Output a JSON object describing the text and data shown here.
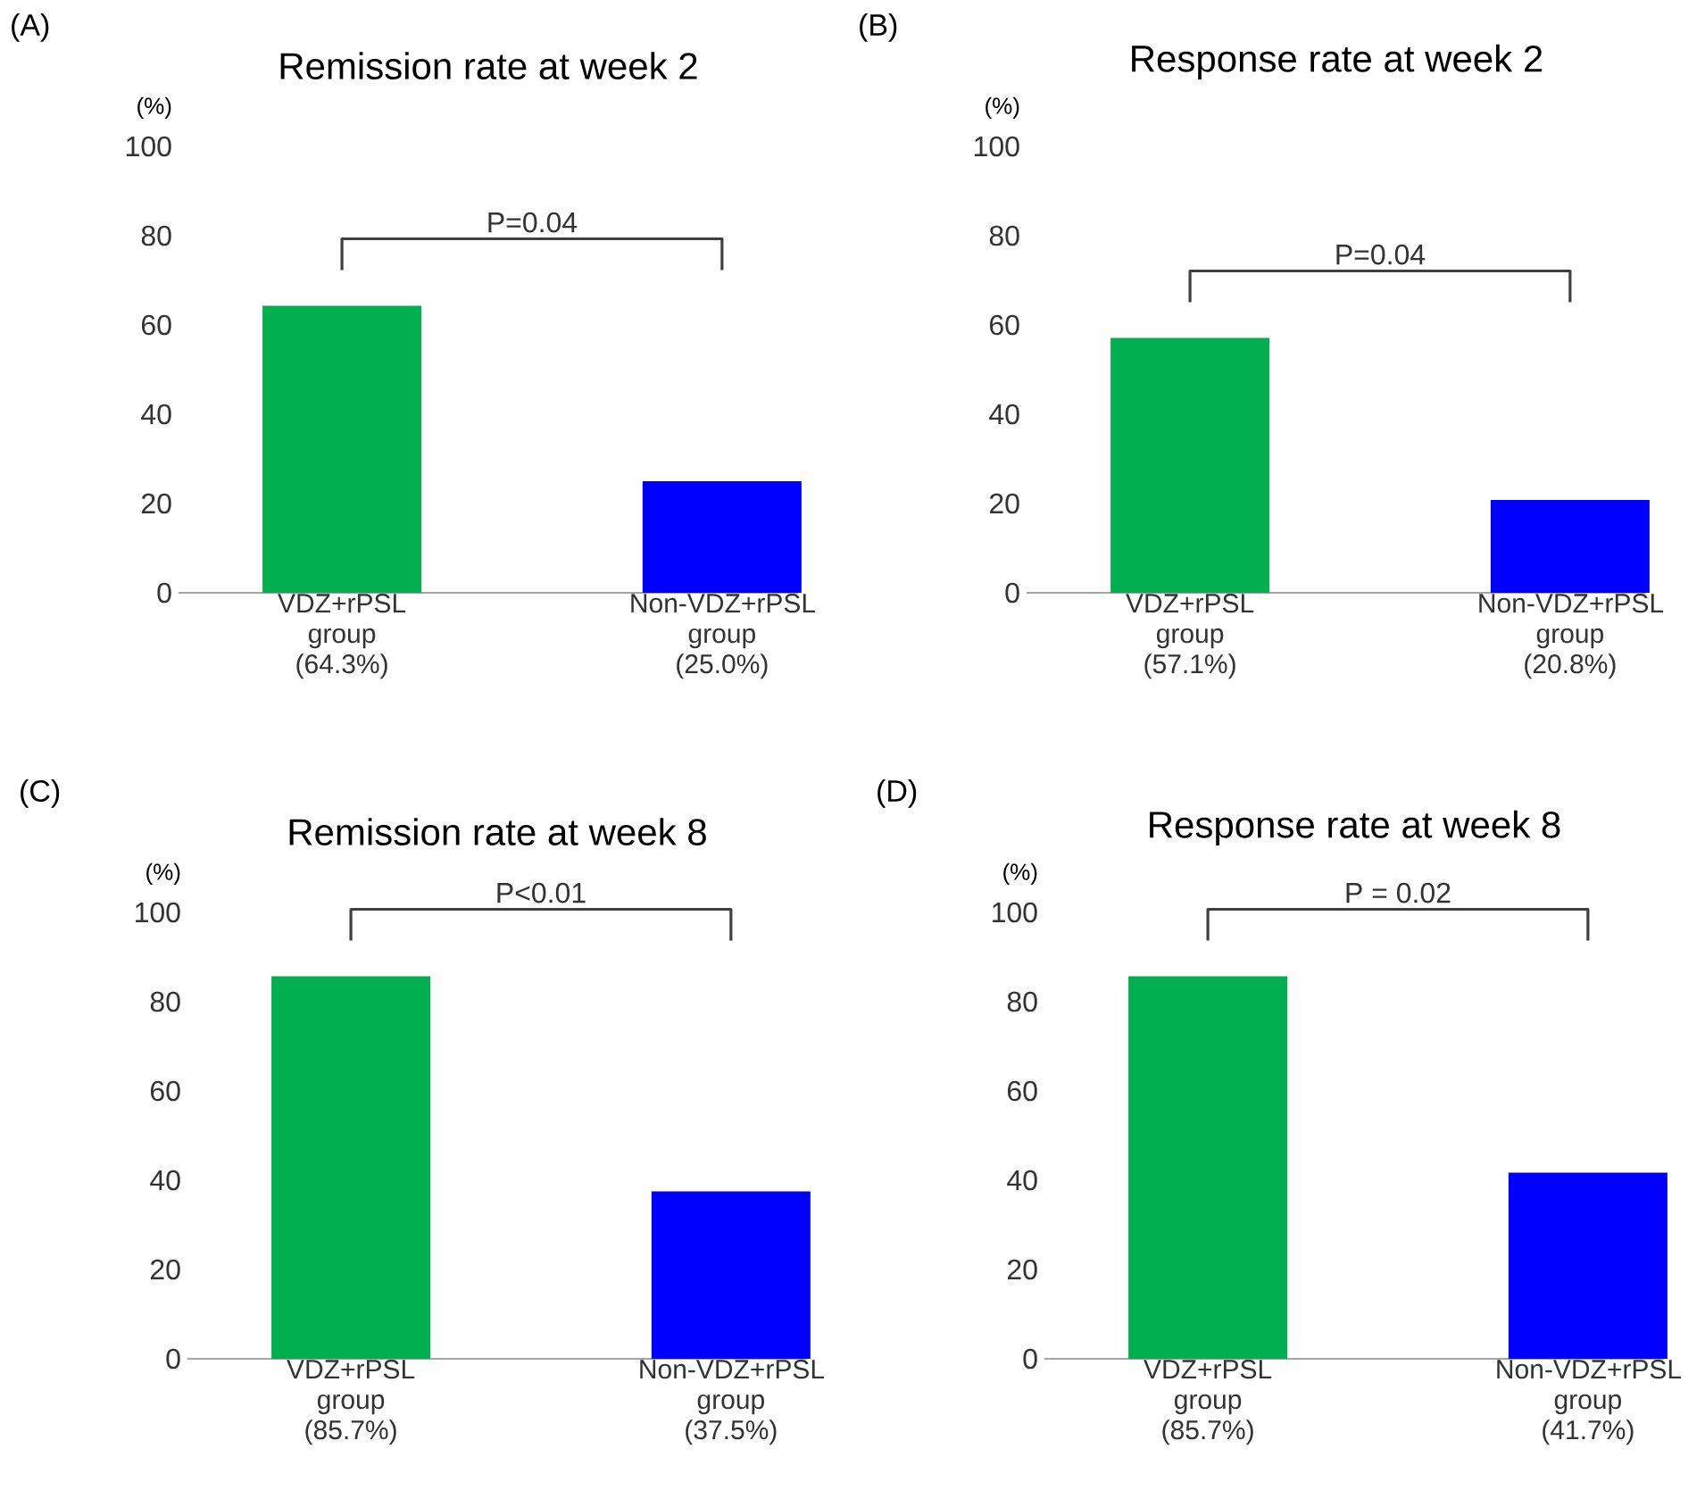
{
  "chart_data": [
    {
      "type": "bar",
      "title": "Remission rate at week 2",
      "ylabel": "(%)",
      "categories": [
        "VDZ+rPSL group",
        "Non-VDZ+rPSL group"
      ],
      "values": [
        64.3,
        25.0
      ],
      "value_labels": [
        "(64.3%)",
        "(25.0%)"
      ],
      "colors": [
        "#00b050",
        "#0000ff"
      ],
      "ylim": [
        0,
        100
      ],
      "yticks": [
        0,
        20,
        40,
        60,
        80,
        100
      ],
      "annotations": [
        "(A)",
        "P=0.04"
      ]
    },
    {
      "type": "bar",
      "title": "Response rate at week 2",
      "ylabel": "(%)",
      "categories": [
        "VDZ+rPSL group",
        "Non-VDZ+rPSL group"
      ],
      "values": [
        57.1,
        20.8
      ],
      "value_labels": [
        "(57.1%)",
        "(20.8%)"
      ],
      "colors": [
        "#00b050",
        "#0000ff"
      ],
      "ylim": [
        0,
        100
      ],
      "yticks": [
        0,
        20,
        40,
        60,
        80,
        100
      ],
      "annotations": [
        "(B)",
        "P=0.04"
      ]
    },
    {
      "type": "bar",
      "title": "Remission rate at week 8",
      "ylabel": "(%)",
      "categories": [
        "VDZ+rPSL group",
        "Non-VDZ+rPSL group"
      ],
      "values": [
        85.7,
        37.5
      ],
      "value_labels": [
        "(85.7%)",
        "(37.5%)"
      ],
      "colors": [
        "#00b050",
        "#0000ff"
      ],
      "ylim": [
        0,
        100
      ],
      "yticks": [
        0,
        20,
        40,
        60,
        80,
        100
      ],
      "annotations": [
        "(C)",
        "P<0.01"
      ]
    },
    {
      "type": "bar",
      "title": "Response rate at week 8",
      "ylabel": "(%)",
      "categories": [
        "VDZ+rPSL group",
        "Non-VDZ+rPSL group"
      ],
      "values": [
        85.7,
        41.7
      ],
      "value_labels": [
        "(85.7%)",
        "(41.7%)"
      ],
      "colors": [
        "#00b050",
        "#0000ff"
      ],
      "ylim": [
        0,
        100
      ],
      "yticks": [
        0,
        20,
        40,
        60,
        80,
        100
      ],
      "annotations": [
        "(D)",
        "P = 0.02"
      ]
    }
  ]
}
